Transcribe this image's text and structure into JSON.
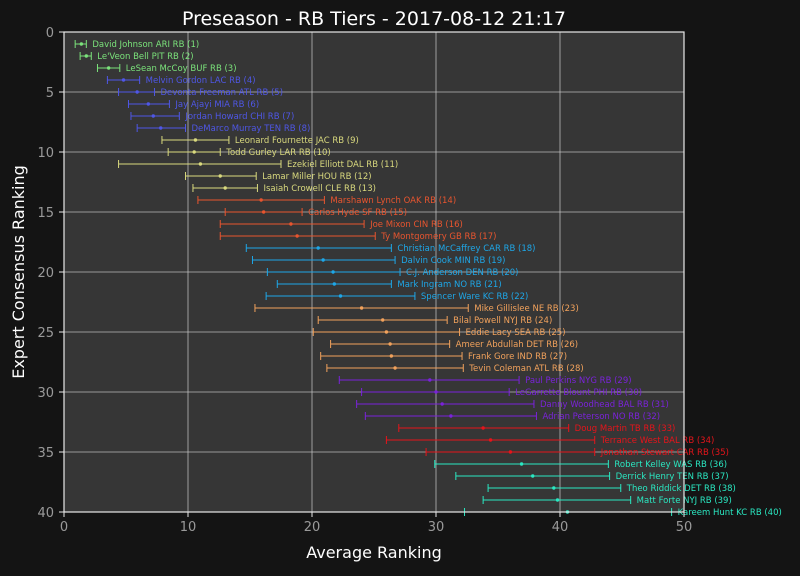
{
  "chart_data": {
    "type": "scatter",
    "title": "Preseason - RB Tiers - 2017-08-12 21:17",
    "xlabel": "Average Ranking",
    "ylabel": "Expert Consensus Ranking",
    "xlim": [
      0,
      50
    ],
    "ylim": [
      40,
      0
    ],
    "xticks": [
      "0",
      "10",
      "20",
      "30",
      "40",
      "50"
    ],
    "yticks": [
      "0",
      "5",
      "10",
      "15",
      "20",
      "25",
      "30",
      "35",
      "40"
    ],
    "grid": true,
    "tier_colors": [
      "#7be37b",
      "#4f57e6",
      "#d9d97e",
      "#e8552f",
      "#1ea7e8",
      "#f2a25c",
      "#7a23d9",
      "#e6141b",
      "#2ae8c2"
    ],
    "points": [
      {
        "rank": 1,
        "label": "David Johnson ARI  RB (1)",
        "avg": 1.4,
        "min": 0.9,
        "max": 1.8,
        "tier": 0
      },
      {
        "rank": 2,
        "label": "Le'Veon Bell PIT  RB (2)",
        "avg": 1.8,
        "min": 1.3,
        "max": 2.2,
        "tier": 0
      },
      {
        "rank": 3,
        "label": "LeSean McCoy BUF  RB (3)",
        "avg": 3.6,
        "min": 2.7,
        "max": 4.5,
        "tier": 0
      },
      {
        "rank": 4,
        "label": "Melvin Gordon LAC  RB (4)",
        "avg": 4.8,
        "min": 3.5,
        "max": 6.1,
        "tier": 1
      },
      {
        "rank": 5,
        "label": "Devonta Freeman ATL  RB (5)",
        "avg": 5.9,
        "min": 4.4,
        "max": 7.3,
        "tier": 1
      },
      {
        "rank": 6,
        "label": "Jay Ajayi MIA  RB (6)",
        "avg": 6.8,
        "min": 5.2,
        "max": 8.5,
        "tier": 1
      },
      {
        "rank": 7,
        "label": "Jordan Howard CHI  RB (7)",
        "avg": 7.2,
        "min": 5.4,
        "max": 9.3,
        "tier": 1
      },
      {
        "rank": 8,
        "label": "DeMarco Murray TEN  RB (8)",
        "avg": 7.8,
        "min": 5.9,
        "max": 9.8,
        "tier": 1
      },
      {
        "rank": 9,
        "label": "Leonard Fournette JAC  RB (9)",
        "avg": 10.6,
        "min": 7.9,
        "max": 13.3,
        "tier": 2
      },
      {
        "rank": 10,
        "label": "Todd Gurley LAR  RB (10)",
        "avg": 10.5,
        "min": 8.4,
        "max": 12.6,
        "tier": 2
      },
      {
        "rank": 11,
        "label": "Ezekiel Elliott DAL  RB (11)",
        "avg": 11.0,
        "min": 4.4,
        "max": 17.5,
        "tier": 2
      },
      {
        "rank": 12,
        "label": "Lamar Miller HOU  RB (12)",
        "avg": 12.6,
        "min": 9.8,
        "max": 15.5,
        "tier": 2
      },
      {
        "rank": 13,
        "label": "Isaiah Crowell CLE  RB (13)",
        "avg": 13.0,
        "min": 10.4,
        "max": 15.6,
        "tier": 2
      },
      {
        "rank": 14,
        "label": "Marshawn Lynch OAK  RB (14)",
        "avg": 15.9,
        "min": 10.8,
        "max": 21.0,
        "tier": 3
      },
      {
        "rank": 15,
        "label": "Carlos Hyde SF  RB (15)",
        "avg": 16.1,
        "min": 13.0,
        "max": 19.2,
        "tier": 3
      },
      {
        "rank": 16,
        "label": "Joe Mixon CIN  RB (16)",
        "avg": 18.3,
        "min": 12.6,
        "max": 24.2,
        "tier": 3
      },
      {
        "rank": 17,
        "label": "Ty Montgomery GB  RB (17)",
        "avg": 18.8,
        "min": 12.6,
        "max": 25.1,
        "tier": 3
      },
      {
        "rank": 18,
        "label": "Christian McCaffrey CAR  RB (18)",
        "avg": 20.5,
        "min": 14.7,
        "max": 26.4,
        "tier": 4
      },
      {
        "rank": 19,
        "label": "Dalvin Cook MIN  RB (19)",
        "avg": 20.9,
        "min": 15.2,
        "max": 26.7,
        "tier": 4
      },
      {
        "rank": 20,
        "label": "C.J. Anderson DEN  RB (20)",
        "avg": 21.7,
        "min": 16.4,
        "max": 27.1,
        "tier": 4
      },
      {
        "rank": 21,
        "label": "Mark Ingram NO  RB (21)",
        "avg": 21.8,
        "min": 17.2,
        "max": 26.4,
        "tier": 4
      },
      {
        "rank": 22,
        "label": "Spencer Ware KC  RB (22)",
        "avg": 22.3,
        "min": 16.3,
        "max": 28.3,
        "tier": 4
      },
      {
        "rank": 23,
        "label": "Mike Gillislee NE  RB (23)",
        "avg": 24.0,
        "min": 15.4,
        "max": 32.6,
        "tier": 5
      },
      {
        "rank": 24,
        "label": "Bilal Powell NYJ  RB (24)",
        "avg": 25.7,
        "min": 20.5,
        "max": 30.9,
        "tier": 5
      },
      {
        "rank": 25,
        "label": "Eddie Lacy SEA  RB (25)",
        "avg": 26.0,
        "min": 20.1,
        "max": 31.9,
        "tier": 5
      },
      {
        "rank": 26,
        "label": "Ameer Abdullah DET  RB (26)",
        "avg": 26.3,
        "min": 21.5,
        "max": 31.1,
        "tier": 5
      },
      {
        "rank": 27,
        "label": "Frank Gore IND  RB (27)",
        "avg": 26.4,
        "min": 20.7,
        "max": 32.1,
        "tier": 5
      },
      {
        "rank": 28,
        "label": "Tevin Coleman ATL  RB (28)",
        "avg": 26.7,
        "min": 21.2,
        "max": 32.2,
        "tier": 5
      },
      {
        "rank": 29,
        "label": "Paul Perkins NYG  RB (29)",
        "avg": 29.5,
        "min": 22.2,
        "max": 36.7,
        "tier": 6
      },
      {
        "rank": 30,
        "label": "LeGarrette Blount PHI  RB (30)",
        "avg": 30.0,
        "min": 24.0,
        "max": 35.9,
        "tier": 6
      },
      {
        "rank": 31,
        "label": "Danny Woodhead BAL  RB (31)",
        "avg": 30.5,
        "min": 23.6,
        "max": 37.9,
        "tier": 6
      },
      {
        "rank": 32,
        "label": "Adrian Peterson NO  RB (32)",
        "avg": 31.2,
        "min": 24.3,
        "max": 38.1,
        "tier": 6
      },
      {
        "rank": 33,
        "label": "Doug Martin TB  RB (33)",
        "avg": 33.8,
        "min": 27.0,
        "max": 40.7,
        "tier": 7
      },
      {
        "rank": 34,
        "label": "Terrance West BAL  RB (34)",
        "avg": 34.4,
        "min": 26.0,
        "max": 42.8,
        "tier": 7
      },
      {
        "rank": 35,
        "label": "Jonathan Stewart CAR  RB (35)",
        "avg": 36.0,
        "min": 29.2,
        "max": 42.8,
        "tier": 7
      },
      {
        "rank": 36,
        "label": "Robert Kelley WAS  RB (36)",
        "avg": 36.9,
        "min": 29.9,
        "max": 43.9,
        "tier": 8
      },
      {
        "rank": 37,
        "label": "Derrick Henry TEN  RB (37)",
        "avg": 37.8,
        "min": 31.6,
        "max": 44.0,
        "tier": 8
      },
      {
        "rank": 38,
        "label": "Theo Riddick DET  RB (38)",
        "avg": 39.5,
        "min": 34.2,
        "max": 44.9,
        "tier": 8
      },
      {
        "rank": 39,
        "label": "Matt Forte NYJ  RB (39)",
        "avg": 39.8,
        "min": 33.8,
        "max": 45.7,
        "tier": 8
      },
      {
        "rank": 40,
        "label": "Kareem Hunt KC  RB (40)",
        "avg": 40.6,
        "min": 32.3,
        "max": 49.0,
        "tier": 8
      }
    ]
  }
}
